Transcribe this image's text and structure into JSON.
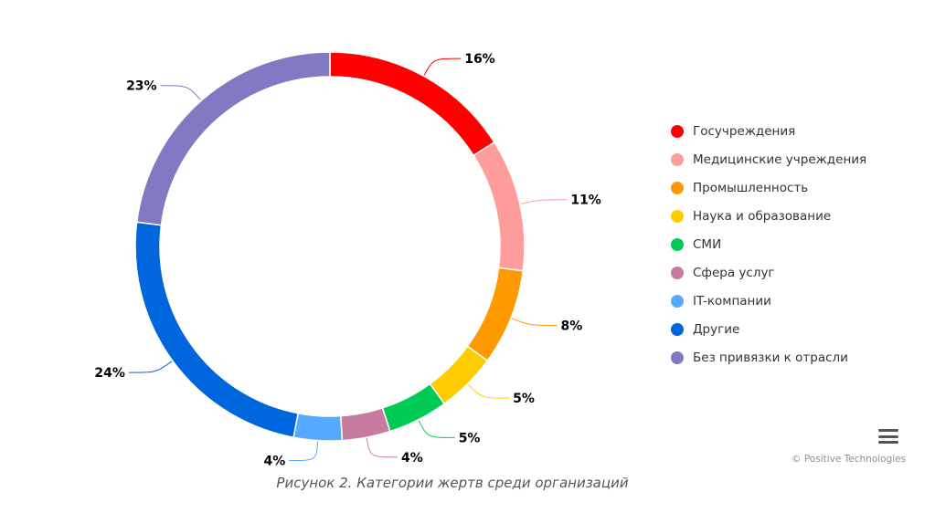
{
  "chart_data": {
    "type": "pie",
    "variant": "donut",
    "title": "",
    "categories": [
      "Госучреждения",
      "Медицинские учреждения",
      "Промышленность",
      "Наука и образование",
      "СМИ",
      "Сфера услуг",
      "IT-компании",
      "Другие",
      "Без привязки к отрасли"
    ],
    "values": [
      16,
      11,
      8,
      5,
      5,
      4,
      4,
      24,
      23
    ],
    "data_labels": [
      "16%",
      "11%",
      "8%",
      "5%",
      "5%",
      "4%",
      "4%",
      "24%",
      "23%"
    ],
    "colors": [
      "#ff0000",
      "#ff9c9c",
      "#ff9900",
      "#ffcc00",
      "#00cc55",
      "#c77ba1",
      "#55aaff",
      "#0066dd",
      "#8079c3"
    ],
    "legend_position": "right"
  },
  "credits": "© Positive Technologies",
  "caption": "Рисунок 2. Категории жертв среди организаций",
  "menu_icon": "hamburger-menu-icon"
}
